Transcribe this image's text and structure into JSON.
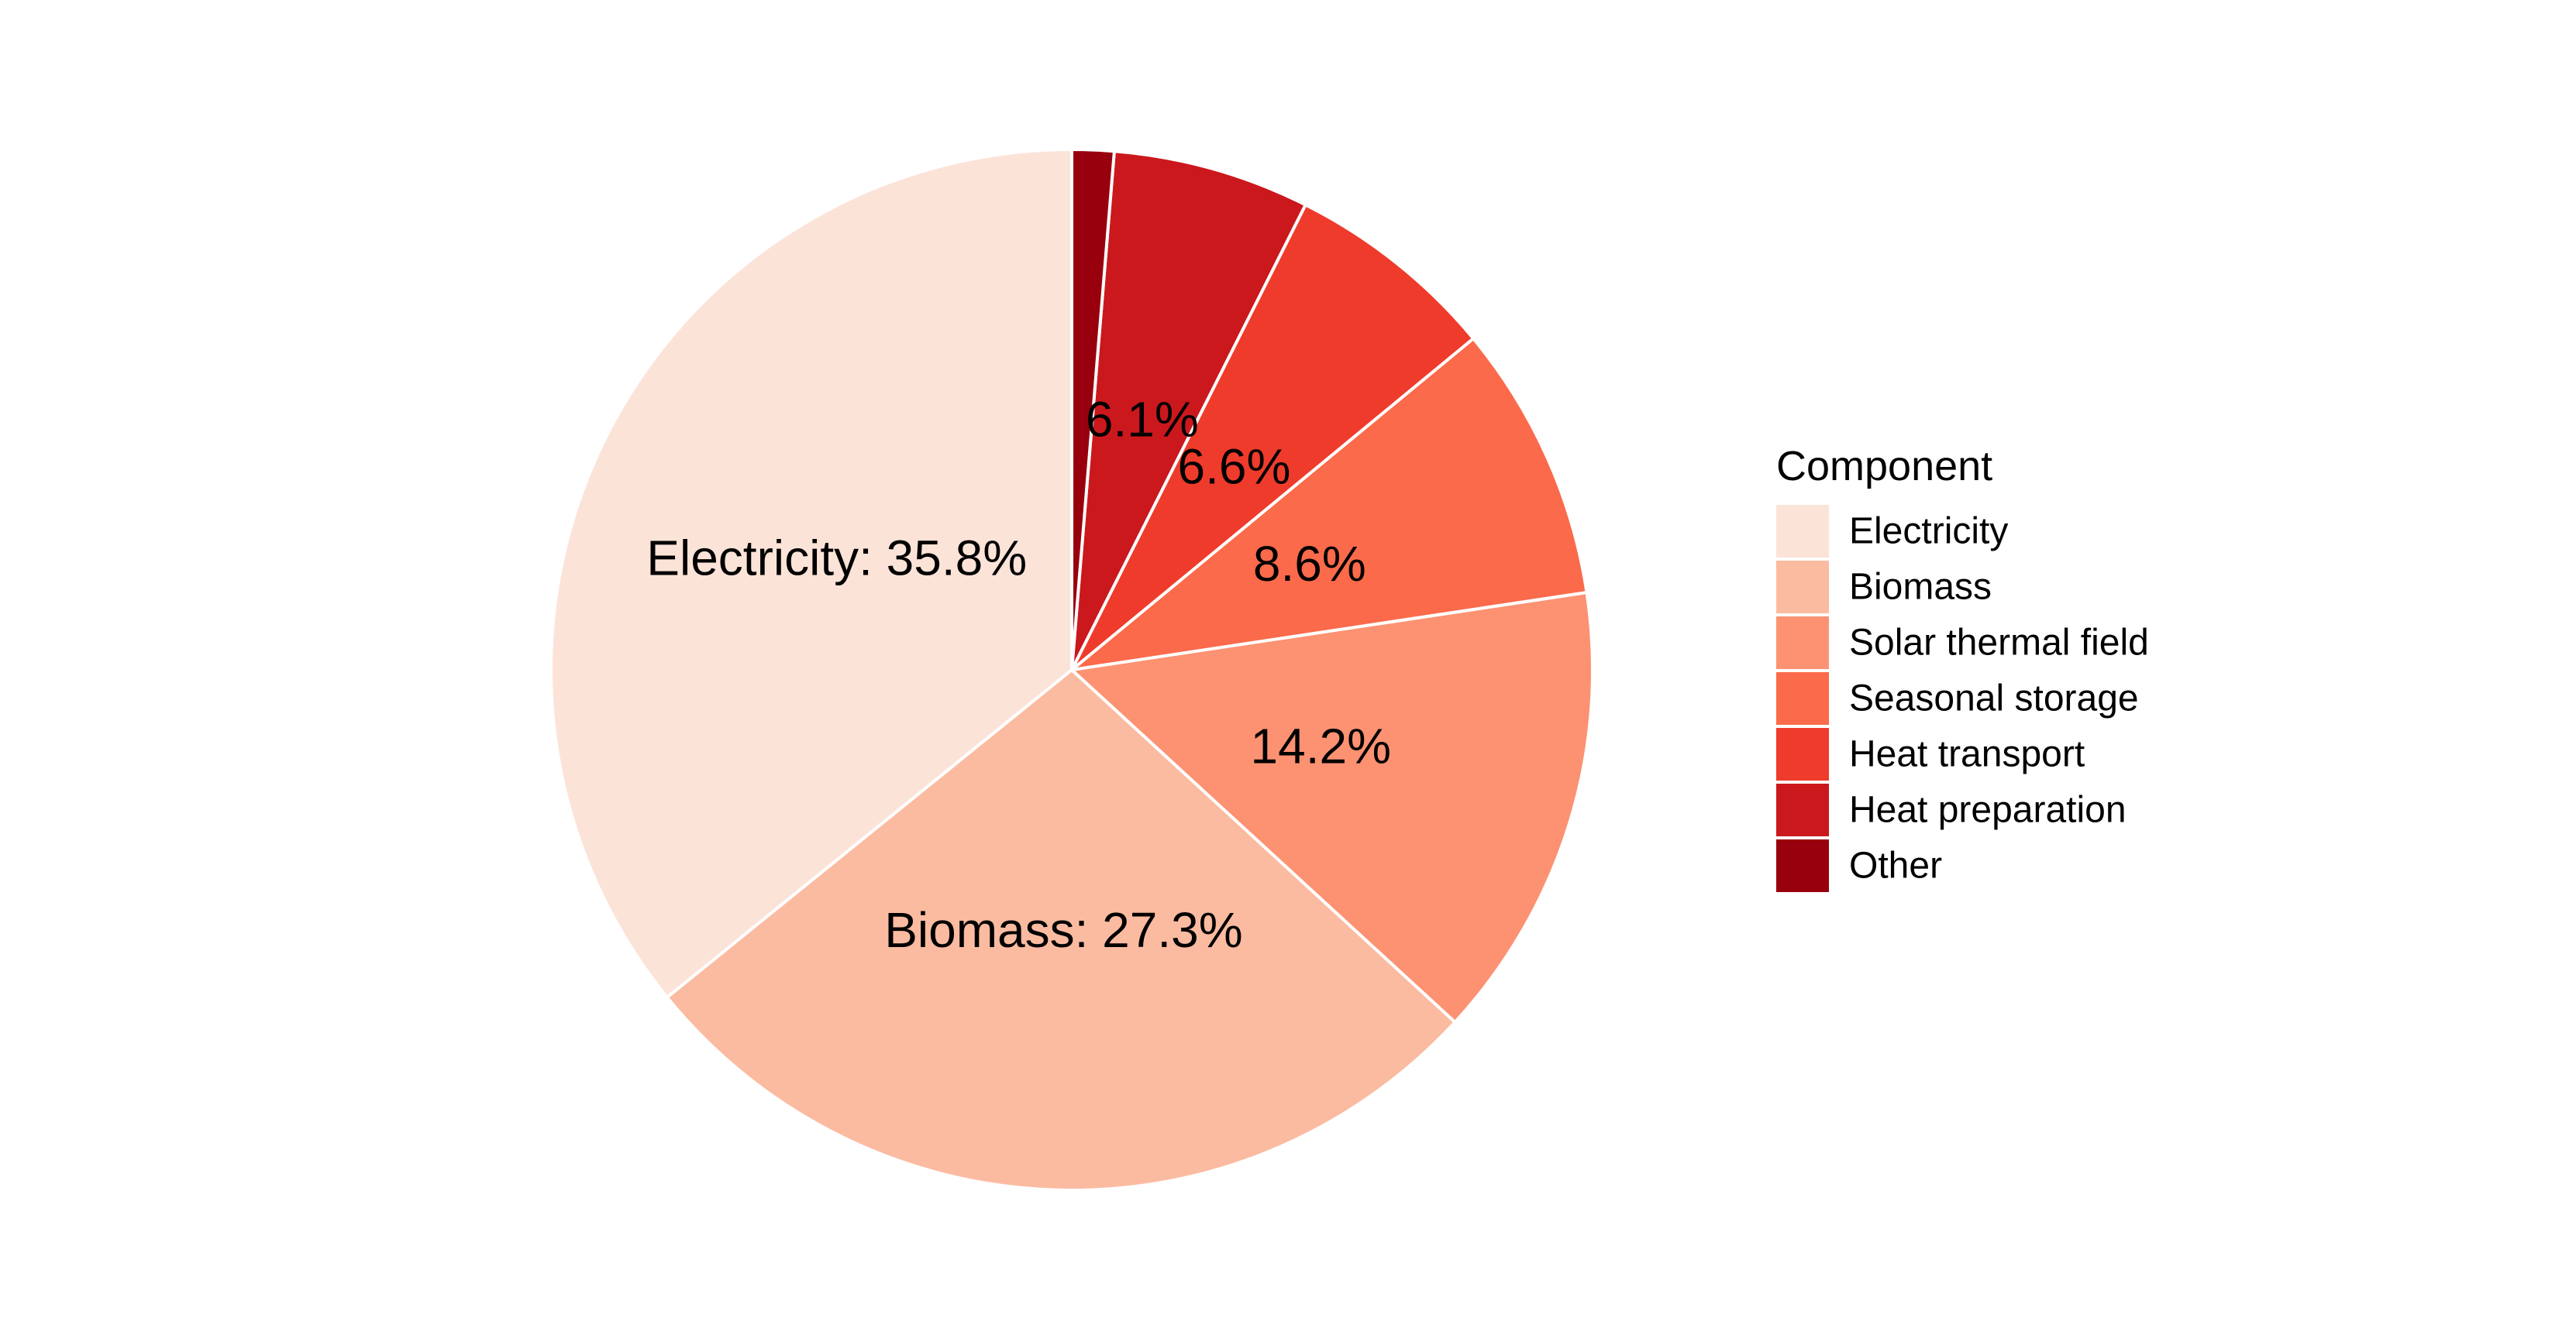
{
  "chart_data": {
    "type": "pie",
    "legend": {
      "title": "Component",
      "placement": "right"
    },
    "slices": [
      {
        "name": "Electricity",
        "value": 35.8,
        "label": "Electricity: 35.8%",
        "color": "#FCE3D8"
      },
      {
        "name": "Biomass",
        "value": 27.3,
        "label": "Biomass: 27.3%",
        "color": "#FBBBA1"
      },
      {
        "name": "Solar thermal field",
        "value": 14.2,
        "label": "14.2%",
        "color": "#FC9272"
      },
      {
        "name": "Seasonal storage",
        "value": 8.6,
        "label": "8.6%",
        "color": "#FB6A4A"
      },
      {
        "name": "Heat transport",
        "value": 6.6,
        "label": "6.6%",
        "color": "#EF3B2C"
      },
      {
        "name": "Heat preparation",
        "value": 6.1,
        "label": "6.1%",
        "color": "#CB181D"
      },
      {
        "name": "Other",
        "value": 1.3,
        "label": "",
        "color": "#99000D"
      }
    ]
  }
}
